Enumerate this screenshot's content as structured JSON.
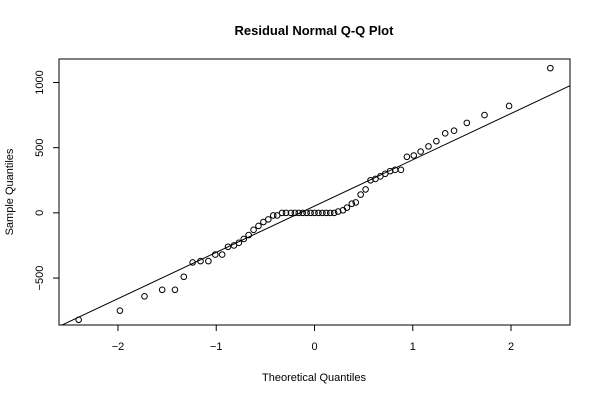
{
  "chart_data": {
    "type": "scatter",
    "title": "Residual Normal Q-Q Plot",
    "xlabel": "Theoretical Quantiles",
    "ylabel": "Sample Quantiles",
    "xlim": [
      -2.6,
      2.6
    ],
    "ylim": [
      -860,
      1180
    ],
    "x_ticks": [
      -2,
      -1,
      0,
      1,
      2
    ],
    "x_tick_labels": [
      "−2",
      "−1",
      "0",
      "1",
      "2"
    ],
    "y_ticks": [
      -500,
      0,
      500,
      1000
    ],
    "y_tick_labels": [
      "−500",
      "0",
      "500",
      "1000"
    ],
    "grid": false,
    "reference_line": {
      "intercept": 52,
      "slope": 355
    },
    "series": [
      {
        "x": [
          -2.4,
          -1.98,
          -1.73,
          -1.55,
          -1.42,
          -1.33,
          -1.24,
          -1.16,
          -1.08,
          -1.01,
          -0.94,
          -0.88,
          -0.82,
          -0.77,
          -0.72,
          -0.67,
          -0.62,
          -0.57,
          -0.52,
          -0.47,
          -0.42,
          -0.38,
          -0.33,
          -0.29,
          -0.24,
          -0.2,
          -0.16,
          -0.12,
          -0.08,
          -0.04,
          0.0,
          0.04,
          0.08,
          0.12,
          0.16,
          0.2,
          0.24,
          0.29,
          0.33,
          0.38,
          0.42,
          0.47,
          0.52,
          0.57,
          0.62,
          0.67,
          0.72,
          0.77,
          0.82,
          0.88,
          0.94,
          1.01,
          1.08,
          1.16,
          1.24,
          1.33,
          1.42,
          1.55,
          1.73,
          1.98,
          2.4
        ],
        "y": [
          -820,
          -750,
          -640,
          -590,
          -590,
          -490,
          -380,
          -370,
          -370,
          -320,
          -320,
          -260,
          -250,
          -230,
          -200,
          -170,
          -130,
          -100,
          -70,
          -50,
          -20,
          -20,
          0,
          0,
          0,
          0,
          0,
          0,
          0,
          0,
          0,
          0,
          0,
          0,
          0,
          0,
          10,
          20,
          40,
          70,
          80,
          140,
          180,
          250,
          260,
          280,
          300,
          320,
          330,
          330,
          430,
          440,
          470,
          510,
          550,
          610,
          630,
          690,
          750,
          820,
          1110
        ]
      }
    ]
  }
}
